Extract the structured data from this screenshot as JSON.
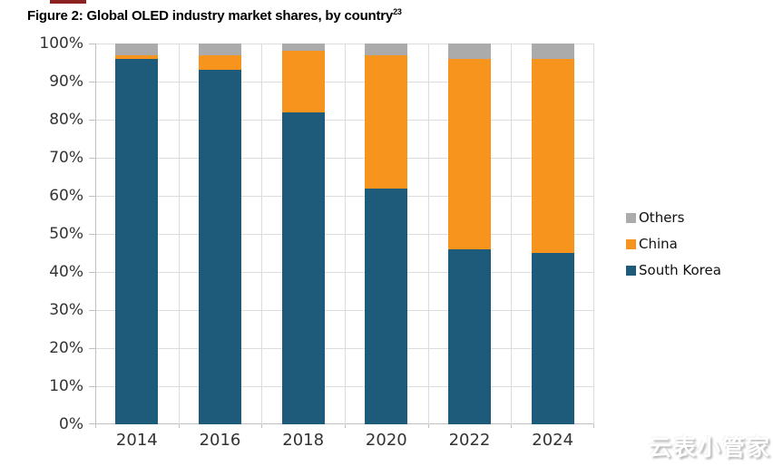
{
  "figure": {
    "title": "Figure 2: Global OLED industry market shares, by country",
    "title_superscript": "23"
  },
  "watermark": "云表小管家",
  "colors": {
    "south_korea": "#1E5B7A",
    "china": "#F7941E",
    "others": "#ABABAB",
    "gridline": "#DCDCDC",
    "axis_line": "#C0C0C0",
    "axis_text": "#333333",
    "top_accent": "#8B2121"
  },
  "chart_data": {
    "type": "bar",
    "stacked": true,
    "title": "Figure 2: Global OLED industry market shares, by country",
    "units": "percent",
    "categories": [
      "2014",
      "2016",
      "2018",
      "2020",
      "2022",
      "2024"
    ],
    "series": [
      {
        "name": "South Korea",
        "color": "#1E5B7A",
        "values": [
          96,
          93,
          82,
          62,
          46,
          45
        ]
      },
      {
        "name": "China",
        "color": "#F7941E",
        "values": [
          1,
          4,
          16,
          35,
          50,
          51
        ]
      },
      {
        "name": "Others",
        "color": "#ABABAB",
        "values": [
          3,
          3,
          2,
          3,
          4,
          4
        ]
      }
    ],
    "xlabel": "",
    "ylabel": "",
    "ylim": [
      0,
      100
    ],
    "ytick_step": 10,
    "yticks": [
      "0%",
      "10%",
      "20%",
      "30%",
      "40%",
      "50%",
      "60%",
      "70%",
      "80%",
      "90%",
      "100%"
    ],
    "grid": "horizontal gridlines every 10% plus vertical gridlines at category boundaries",
    "legend_position": "right",
    "legend_order": [
      "Others",
      "China",
      "South Korea"
    ]
  }
}
